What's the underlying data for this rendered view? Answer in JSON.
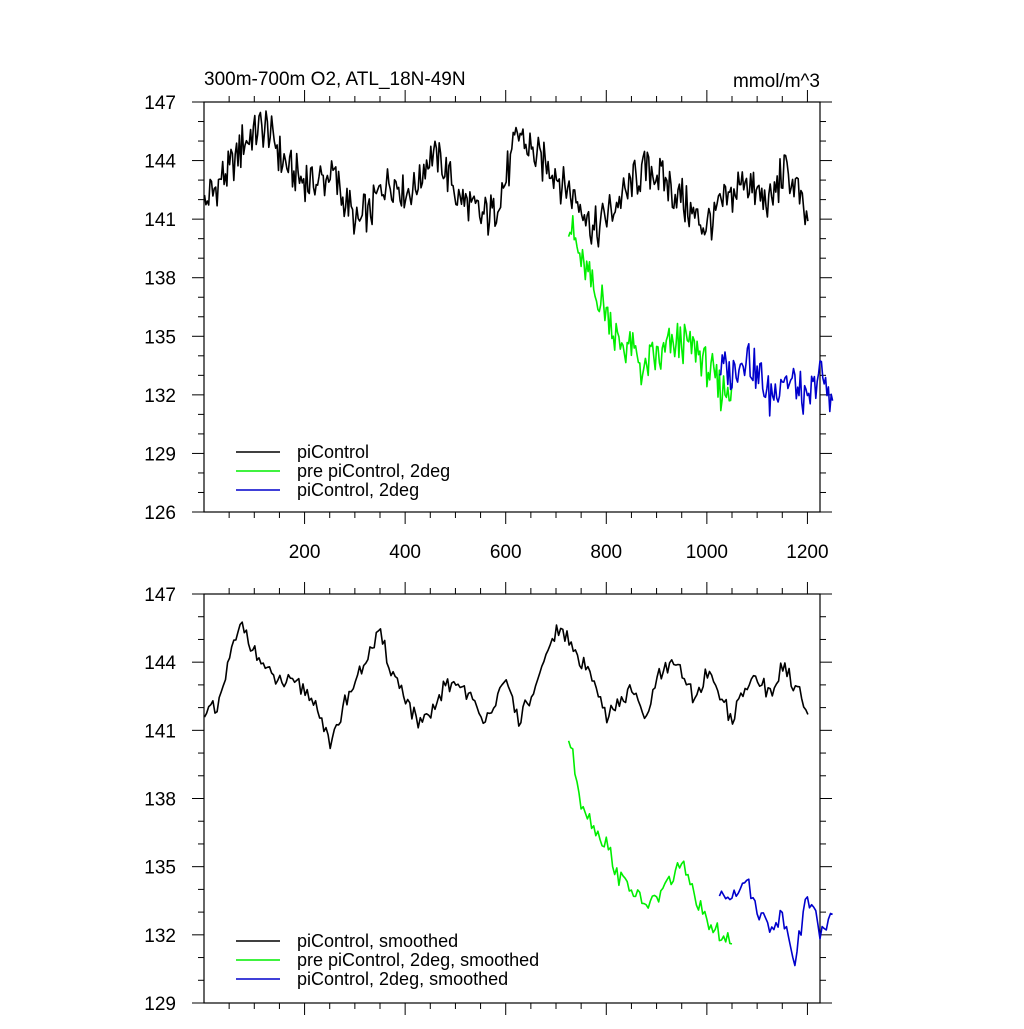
{
  "chart_data": [
    {
      "type": "line",
      "title": "300m-700m O2, ATL_18N-49N",
      "units": "mmol/m^3",
      "xlabel": "",
      "ylabel": "",
      "xlim": [
        0,
        1225
      ],
      "ylim": [
        126,
        147
      ],
      "x_ticks": [
        200,
        400,
        600,
        800,
        1000,
        1200
      ],
      "x_tick_labels": [
        "200",
        "400",
        "600",
        "800",
        "1000",
        "1200"
      ],
      "y_ticks": [
        126,
        129,
        132,
        135,
        138,
        141,
        144,
        147
      ],
      "y_tick_labels": [
        "126",
        "129",
        "132",
        "135",
        "138",
        "141",
        "144",
        "147"
      ],
      "legend_position": "bottom-left",
      "series": [
        {
          "name": "piControl",
          "color": "#000000",
          "x_start": 1,
          "x_step": 25,
          "values": [
            141.8,
            142.8,
            143.4,
            144.8,
            145.5,
            145.8,
            144.2,
            143.3,
            143.1,
            142.8,
            143.5,
            142.2,
            140.7,
            141.3,
            142.5,
            143.1,
            142.3,
            142.9,
            144.3,
            143.7,
            142.4,
            141.6,
            141.1,
            141.4,
            143.1,
            145.3,
            144.5,
            143.9,
            143.3,
            142.5,
            141.8,
            140.3,
            141.2,
            141.9,
            142.7,
            143.6,
            143.3,
            142.8,
            142.0,
            141.2,
            140.7,
            141.5,
            142.2,
            143.1,
            142.2,
            141.6,
            143.5,
            142.6,
            140.9
          ]
        },
        {
          "name": "pre piControl, 2deg",
          "color": "#00ee00",
          "x_start": 725,
          "x_step": 25,
          "values": [
            140.7,
            138.8,
            137.2,
            136.3,
            134.6,
            134.4,
            133.3,
            133.8,
            134.3,
            134.8,
            134.4,
            133.5,
            132.3,
            132.6
          ]
        },
        {
          "name": "piControl, 2deg",
          "color": "#0000cc",
          "x_start": 1025,
          "x_step": 25,
          "values": [
            133.4,
            132.9,
            134.2,
            133.1,
            131.8,
            132.9,
            132.5,
            131.4,
            133.3,
            131.7
          ]
        }
      ]
    },
    {
      "type": "line",
      "title": "",
      "xlabel": "",
      "ylabel": "",
      "xlim": [
        0,
        1225
      ],
      "ylim": [
        129,
        147
      ],
      "x_ticks": [
        200,
        400,
        600,
        800,
        1000,
        1200
      ],
      "y_ticks": [
        129,
        132,
        135,
        138,
        141,
        144,
        147
      ],
      "y_tick_labels": [
        "129",
        "132",
        "135",
        "138",
        "141",
        "144",
        "147"
      ],
      "legend_position": "bottom-left",
      "series": [
        {
          "name": "piControl, smoothed",
          "color": "#000000",
          "x_start": 1,
          "x_step": 25,
          "values": [
            142.0,
            141.8,
            144.2,
            145.7,
            144.5,
            143.5,
            143.2,
            143.0,
            142.8,
            142.1,
            140.2,
            142.0,
            143.2,
            144.3,
            145.2,
            143.5,
            142.5,
            141.2,
            141.6,
            142.8,
            143.2,
            142.6,
            141.5,
            142.2,
            143.0,
            141.5,
            142.4,
            143.8,
            145.5,
            144.9,
            143.9,
            143.4,
            141.5,
            142.2,
            142.8,
            141.4,
            143.2,
            143.8,
            143.6,
            142.3,
            143.6,
            142.6,
            141.5,
            142.8,
            143.4,
            142.5,
            143.9,
            142.9,
            141.7
          ]
        },
        {
          "name": "pre piControl, 2deg, smoothed",
          "color": "#00ee00",
          "x_start": 725,
          "x_step": 25,
          "values": [
            140.8,
            137.9,
            136.7,
            136.0,
            134.5,
            134.1,
            133.3,
            133.6,
            134.4,
            135.2,
            133.8,
            132.4,
            132.1,
            131.6
          ]
        },
        {
          "name": "piControl, 2deg, smoothed",
          "color": "#0000cc",
          "x_start": 1025,
          "x_step": 25,
          "values": [
            133.6,
            133.8,
            134.5,
            133.2,
            132.3,
            132.9,
            131.0,
            133.8,
            132.2,
            132.9
          ]
        }
      ]
    }
  ]
}
